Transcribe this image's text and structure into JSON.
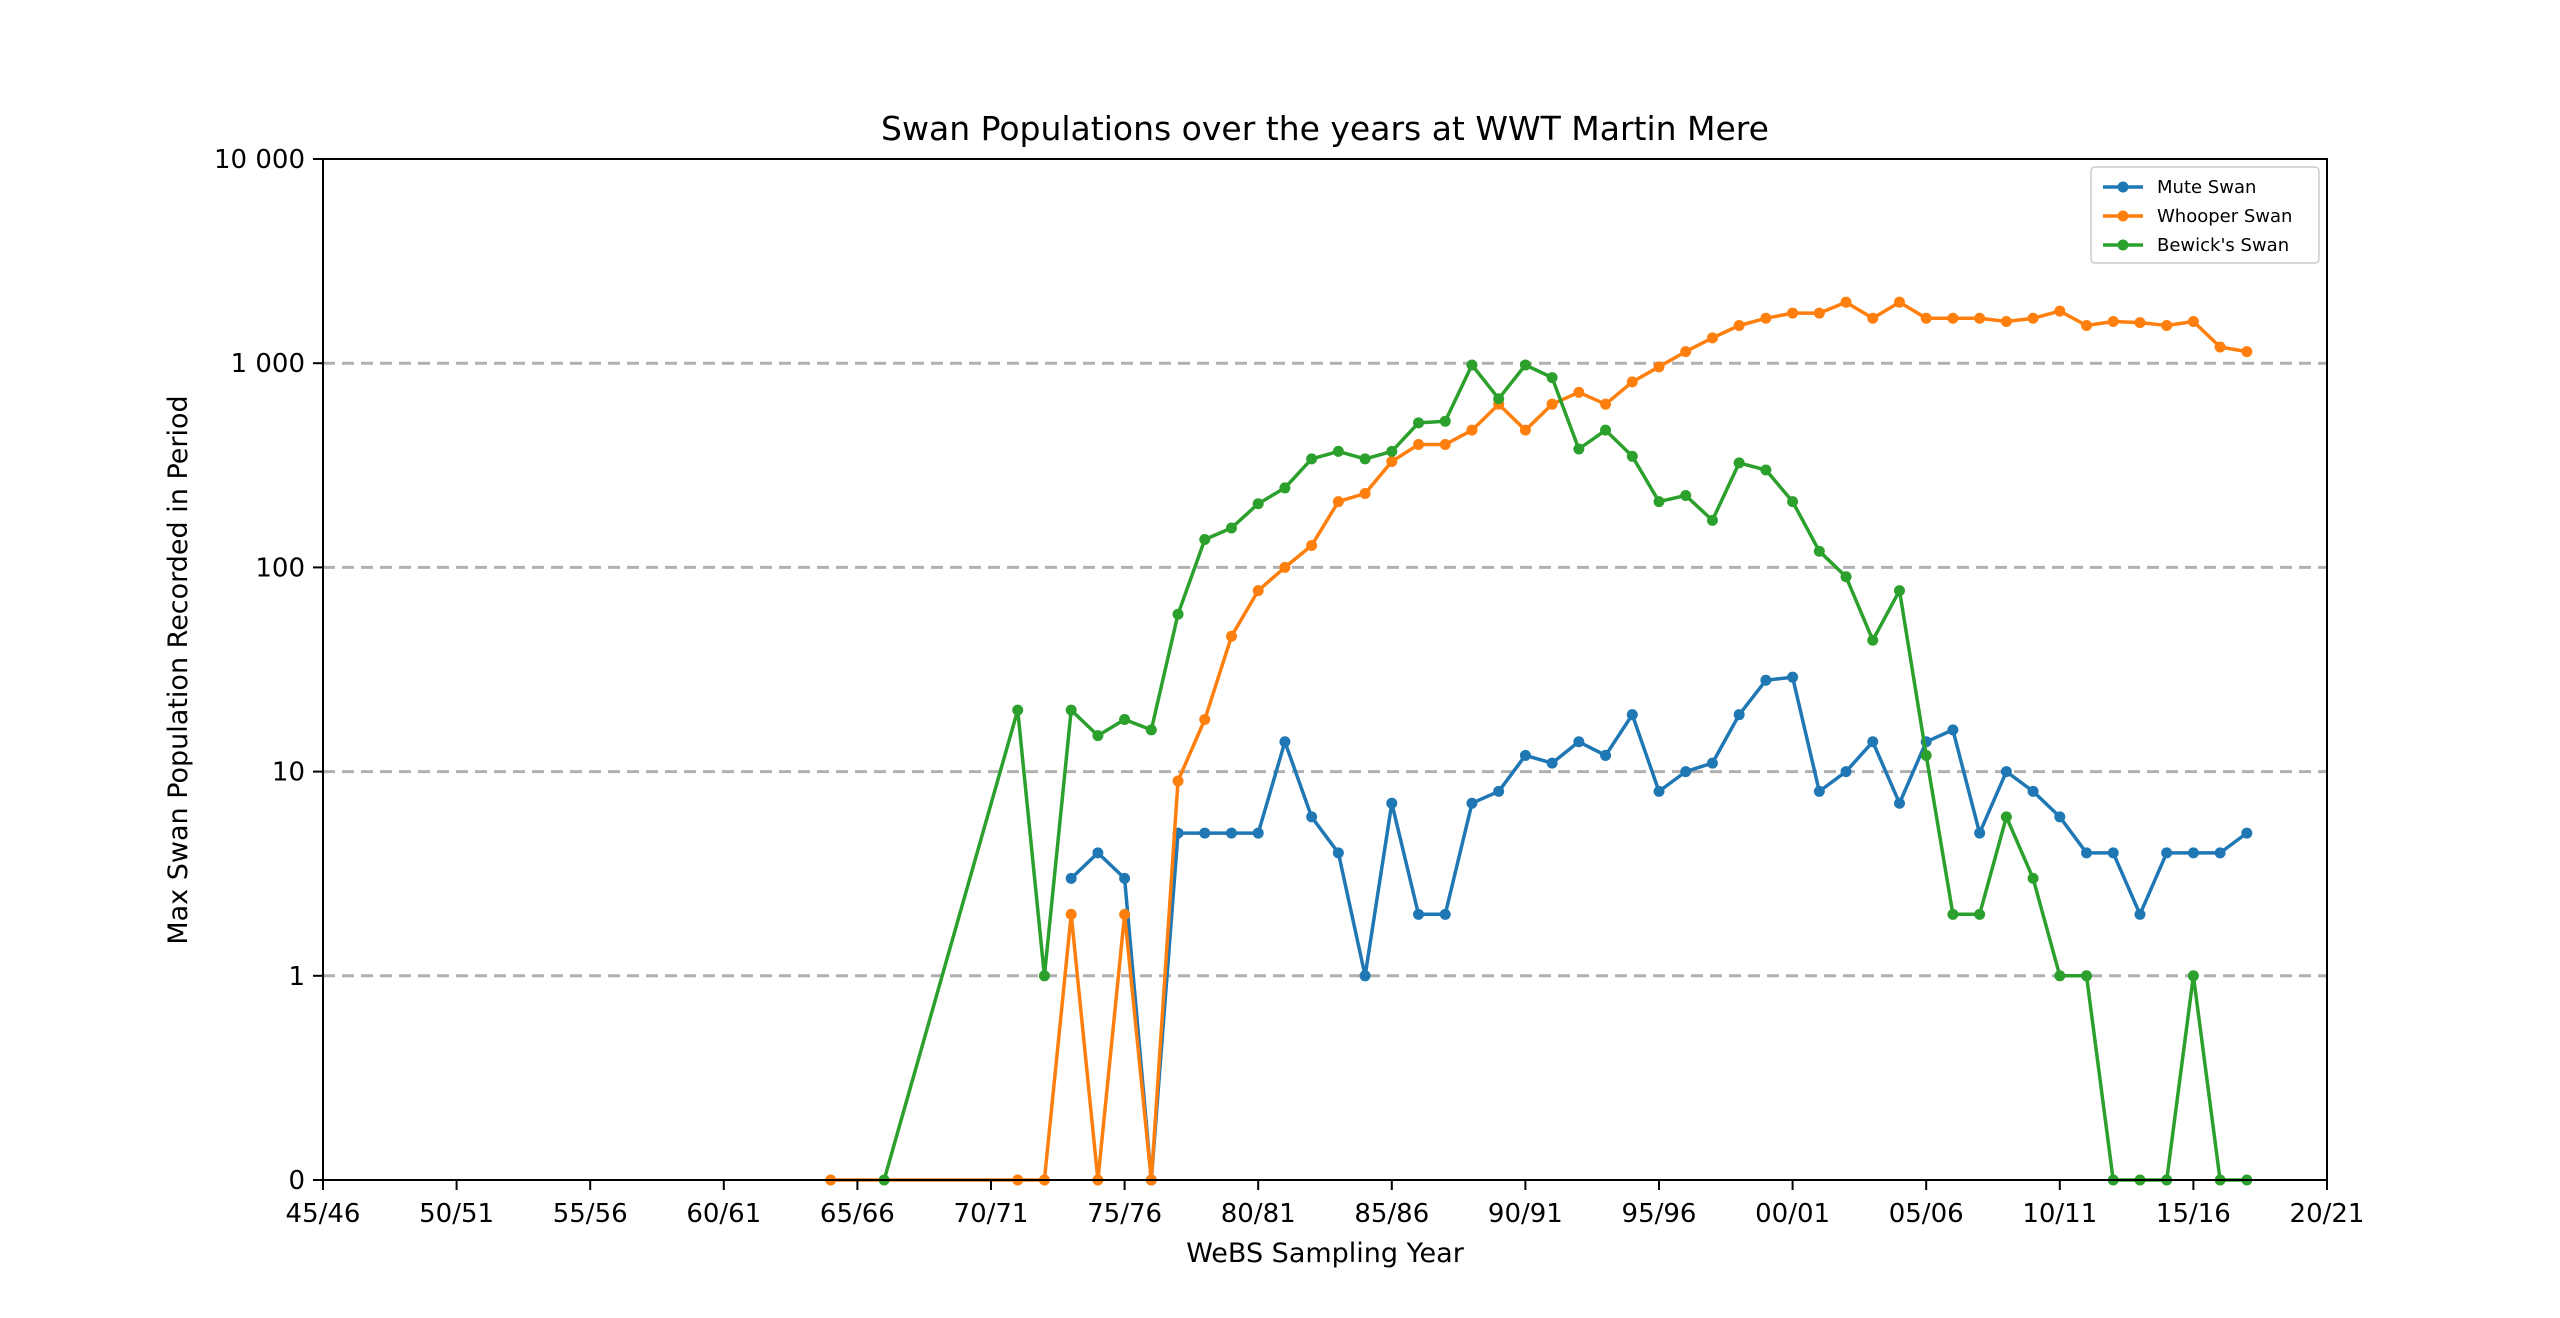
{
  "chart_data": {
    "type": "line",
    "title": "Swan Populations over the years at WWT Martin Mere",
    "xlabel": "WeBS Sampling Year",
    "ylabel": "Max Swan Population Recorded in Period",
    "y_scale": "symlog",
    "grid": "horizontal dashed at y ticks",
    "legend_position": "top-right",
    "x_ticks": [
      "45/46",
      "50/51",
      "55/56",
      "60/61",
      "65/66",
      "70/71",
      "75/76",
      "80/81",
      "85/86",
      "90/91",
      "95/96",
      "00/01",
      "05/06",
      "10/11",
      "15/16",
      "20/21"
    ],
    "x_tick_years": [
      1945,
      1950,
      1955,
      1960,
      1965,
      1970,
      1975,
      1980,
      1985,
      1990,
      1995,
      2000,
      2005,
      2010,
      2015,
      2020
    ],
    "y_ticks": [
      0,
      1,
      10,
      100,
      1000,
      10000
    ],
    "y_tick_labels": [
      "0",
      "1",
      "10",
      "100",
      "1 000",
      "10 000"
    ],
    "xlim": [
      1945,
      2020
    ],
    "ylim": [
      0,
      10000
    ],
    "series": [
      {
        "name": "Mute Swan",
        "color": "#1f77b4",
        "x": [
          1973,
          1974,
          1975,
          1976,
          1977,
          1978,
          1979,
          1980,
          1981,
          1982,
          1983,
          1984,
          1985,
          1986,
          1987,
          1988,
          1989,
          1990,
          1991,
          1992,
          1993,
          1994,
          1995,
          1996,
          1997,
          1998,
          1999,
          2000,
          2001,
          2002,
          2003,
          2004,
          2005,
          2006,
          2007,
          2008,
          2009,
          2010,
          2011,
          2012,
          2013,
          2014,
          2015,
          2016,
          2017
        ],
        "values": [
          3,
          4,
          3,
          0,
          5,
          5,
          5,
          5,
          14,
          6,
          4,
          1,
          7,
          2,
          2,
          7,
          8,
          12,
          11,
          14,
          12,
          19,
          8,
          10,
          11,
          19,
          28,
          29,
          8,
          10,
          14,
          7,
          14,
          16,
          5,
          10,
          8,
          6,
          4,
          4,
          2,
          4,
          4,
          4,
          5
        ]
      },
      {
        "name": "Whooper Swan",
        "color": "#ff7f0e",
        "x": [
          1964,
          1971,
          1972,
          1973,
          1974,
          1975,
          1976,
          1977,
          1978,
          1979,
          1980,
          1981,
          1982,
          1983,
          1984,
          1985,
          1986,
          1987,
          1988,
          1989,
          1990,
          1991,
          1992,
          1993,
          1994,
          1995,
          1996,
          1997,
          1998,
          1999,
          2000,
          2001,
          2002,
          2003,
          2004,
          2005,
          2006,
          2007,
          2008,
          2009,
          2010,
          2011,
          2012,
          2013,
          2014,
          2015,
          2016,
          2017
        ],
        "values": [
          0,
          0,
          0,
          2,
          0,
          2,
          0,
          9,
          18,
          46,
          77,
          100,
          128,
          210,
          230,
          330,
          400,
          400,
          470,
          630,
          470,
          630,
          720,
          630,
          810,
          960,
          1140,
          1330,
          1530,
          1660,
          1760,
          1760,
          1990,
          1660,
          1990,
          1660,
          1660,
          1660,
          1600,
          1660,
          1800,
          1530,
          1600,
          1580,
          1530,
          1600,
          1200,
          1140
        ]
      },
      {
        "name": "Bewick's Swan",
        "color": "#2ca02c",
        "x": [
          1966,
          1971,
          1972,
          1973,
          1974,
          1975,
          1976,
          1977,
          1978,
          1979,
          1980,
          1981,
          1982,
          1983,
          1984,
          1985,
          1986,
          1987,
          1988,
          1989,
          1990,
          1991,
          1992,
          1993,
          1994,
          1995,
          1996,
          1997,
          1998,
          1999,
          2000,
          2001,
          2002,
          2003,
          2004,
          2005,
          2006,
          2007,
          2008,
          2009,
          2010,
          2011,
          2012,
          2013,
          2014,
          2015,
          2016,
          2017
        ],
        "values": [
          0,
          20,
          1,
          20,
          15,
          18,
          16,
          59,
          137,
          156,
          205,
          245,
          340,
          370,
          340,
          370,
          510,
          520,
          980,
          670,
          980,
          850,
          380,
          470,
          350,
          210,
          225,
          170,
          325,
          300,
          210,
          120,
          90,
          44,
          77,
          12,
          2,
          2,
          6,
          3,
          1,
          1,
          0,
          0,
          0,
          1,
          0,
          0
        ]
      }
    ]
  }
}
